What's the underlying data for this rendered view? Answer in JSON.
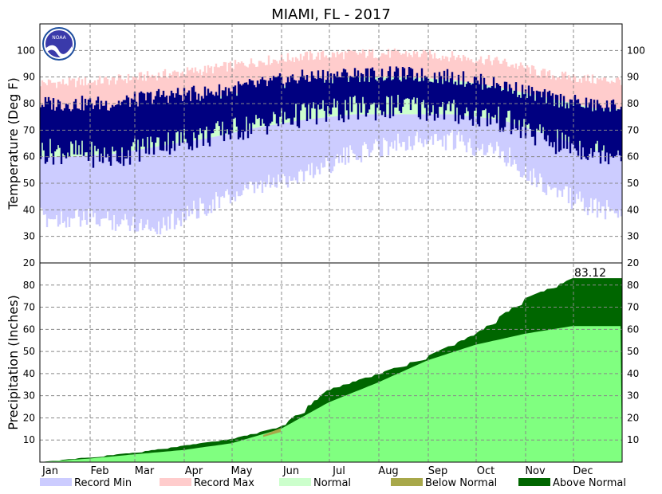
{
  "chart_data": [
    {
      "type": "area",
      "panel": "temperature",
      "title": "MIAMI, FL - 2017",
      "ylabel": "Temperature (Deg F)",
      "ylim": [
        20,
        110
      ],
      "yticks": [
        30,
        40,
        50,
        60,
        70,
        80,
        90,
        100
      ],
      "grid": true,
      "months": [
        "Jan",
        "Feb",
        "Mar",
        "Apr",
        "May",
        "Jun",
        "Jul",
        "Aug",
        "Sep",
        "Oct",
        "Nov",
        "Dec"
      ],
      "series": [
        {
          "name": "Record Min",
          "color": "#ccccff",
          "values": [
            41,
            40,
            38,
            46,
            52,
            58,
            65,
            70,
            70,
            66,
            52,
            44
          ]
        },
        {
          "name": "Record Max",
          "color": "#ffcccc",
          "values": [
            87,
            88,
            90,
            92,
            95,
            97,
            98,
            98,
            97,
            95,
            90,
            88
          ]
        },
        {
          "name": "Normal",
          "color": "#ccffcc",
          "low": [
            60,
            61,
            64,
            67,
            71,
            74,
            76,
            76,
            76,
            74,
            68,
            62
          ],
          "high": [
            76,
            77,
            79,
            82,
            85,
            88,
            90,
            90,
            89,
            86,
            82,
            78
          ]
        },
        {
          "name": "Observed",
          "color": "#000080",
          "low": [
            62,
            60,
            65,
            68,
            72,
            76,
            78,
            79,
            77,
            74,
            66,
            62
          ],
          "high": [
            80,
            80,
            83,
            84,
            87,
            90,
            91,
            91,
            90,
            87,
            82,
            79
          ]
        }
      ]
    },
    {
      "type": "area",
      "panel": "precipitation",
      "ylabel": "Precipitation (Inches)",
      "ylim": [
        0,
        90
      ],
      "yticks": [
        10,
        20,
        30,
        40,
        50,
        60,
        70,
        80
      ],
      "grid": true,
      "annotation": "83.12",
      "series": [
        {
          "name": "Normal",
          "color": "#80ff80",
          "values": [
            0.0,
            1.6,
            3.5,
            5.5,
            8.5,
            15,
            27,
            36,
            46,
            53,
            58,
            61.5
          ]
        },
        {
          "name": "Observed",
          "color": "#006600",
          "values": [
            0.0,
            2.3,
            4.3,
            7.5,
            10.5,
            16,
            33,
            40,
            48,
            58,
            74,
            83.12
          ]
        }
      ]
    }
  ],
  "legend": [
    {
      "label": "Record Min",
      "color": "#ccccff"
    },
    {
      "label": "Record Max",
      "color": "#ffcccc"
    },
    {
      "label": "Normal",
      "color": "#ccffcc"
    },
    {
      "label": "Below Normal",
      "color": "#a8a84a"
    },
    {
      "label": "Above Normal",
      "color": "#006600"
    }
  ],
  "logo": {
    "text": "NOAA"
  }
}
